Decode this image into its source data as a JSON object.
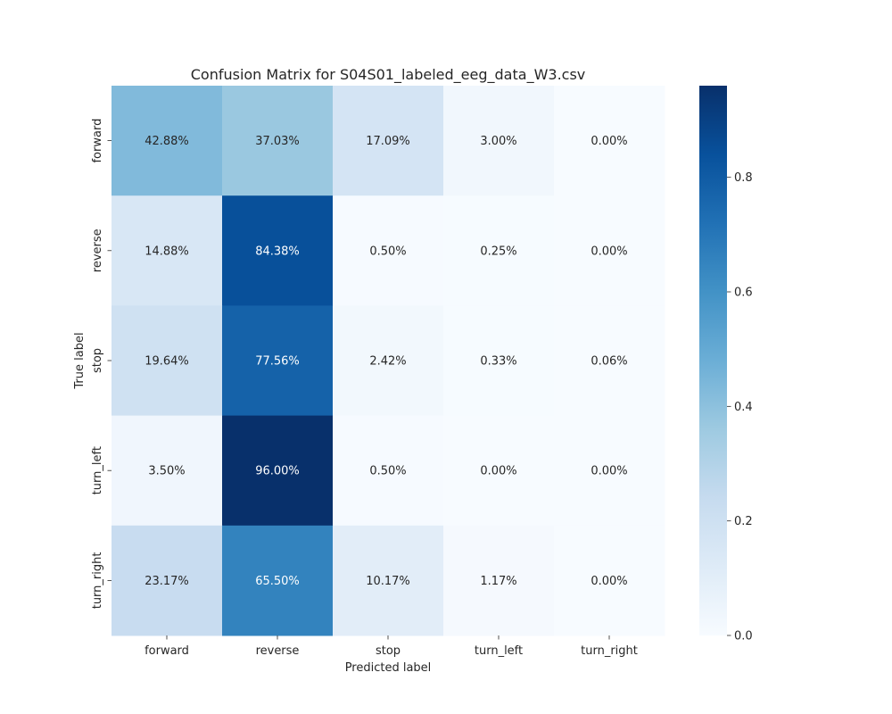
{
  "chart_data": {
    "type": "heatmap",
    "title": "Confusion Matrix for S04S01_labeled_eeg_data_W3.csv",
    "xlabel": "Predicted label",
    "ylabel": "True label",
    "x_categories": [
      "forward",
      "reverse",
      "stop",
      "turn_left",
      "turn_right"
    ],
    "y_categories": [
      "forward",
      "reverse",
      "stop",
      "turn_left",
      "turn_right"
    ],
    "values": [
      [
        0.4288,
        0.3703,
        0.1709,
        0.03,
        0.0
      ],
      [
        0.1488,
        0.8438,
        0.005,
        0.0025,
        0.0
      ],
      [
        0.1964,
        0.7756,
        0.0242,
        0.0033,
        0.0006
      ],
      [
        0.035,
        0.96,
        0.005,
        0.0,
        0.0
      ],
      [
        0.2317,
        0.655,
        0.1017,
        0.0117,
        0.0
      ]
    ],
    "annotations": [
      [
        "42.88%",
        "37.03%",
        "17.09%",
        "3.00%",
        "0.00%"
      ],
      [
        "14.88%",
        "84.38%",
        "0.50%",
        "0.25%",
        "0.00%"
      ],
      [
        "19.64%",
        "77.56%",
        "2.42%",
        "0.33%",
        "0.06%"
      ],
      [
        "3.50%",
        "96.00%",
        "0.50%",
        "0.00%",
        "0.00%"
      ],
      [
        "23.17%",
        "65.50%",
        "10.17%",
        "1.17%",
        "0.00%"
      ]
    ],
    "colormap": "Blues",
    "colorbar": {
      "range": [
        0.0,
        0.96
      ],
      "ticks": [
        "0.0",
        "0.2",
        "0.4",
        "0.6",
        "0.8"
      ]
    }
  }
}
